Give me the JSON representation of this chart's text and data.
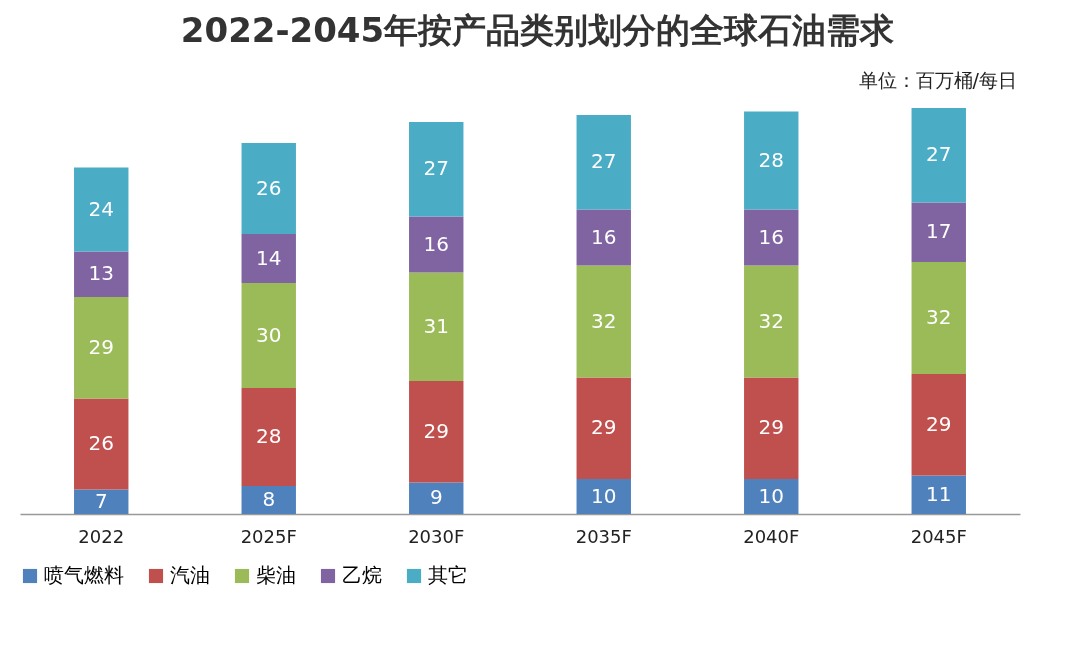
{
  "chart_data": {
    "type": "bar",
    "title": "2022-2045年按产品类别划分的全球石油需求",
    "subtitle": "单位：百万桶/每日",
    "categories": [
      "2022",
      "2025F",
      "2030F",
      "2035F",
      "2040F",
      "2045F"
    ],
    "stacked": true,
    "data_labels": true,
    "legend": "bottom",
    "grid": false,
    "series": [
      {
        "name": "喷气燃料",
        "color": "#4f81bd",
        "values": [
          7,
          8,
          9,
          10,
          10,
          11
        ]
      },
      {
        "name": "汽油",
        "color": "#c0504d",
        "values": [
          26,
          28,
          29,
          29,
          29,
          29
        ]
      },
      {
        "name": "柴油",
        "color": "#9bbb59",
        "values": [
          29,
          30,
          31,
          32,
          32,
          32
        ]
      },
      {
        "name": "乙烷",
        "color": "#8064a2",
        "values": [
          13,
          14,
          16,
          16,
          16,
          17
        ]
      },
      {
        "name": "其它",
        "color": "#4bacc6",
        "values": [
          24,
          26,
          27,
          27,
          28,
          27
        ]
      }
    ]
  }
}
